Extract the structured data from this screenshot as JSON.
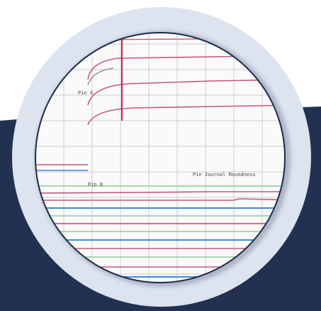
{
  "colors": {
    "navy": "#22314f",
    "halo": "#dde3ef",
    "ring_edge": "#1d2b48",
    "paper": "#fafafa",
    "grid": "#c9ced6",
    "pink": "#c8577a",
    "red_marker": "#d6213c",
    "green": "#8fc79a",
    "blue": "#3c8ed8",
    "gray_curve": "#9b8f95"
  },
  "chart_labels": {
    "pin_upper": "Pin 4",
    "pin_lower": "Pin 8",
    "journal": "Pin Journal Roundness"
  }
}
